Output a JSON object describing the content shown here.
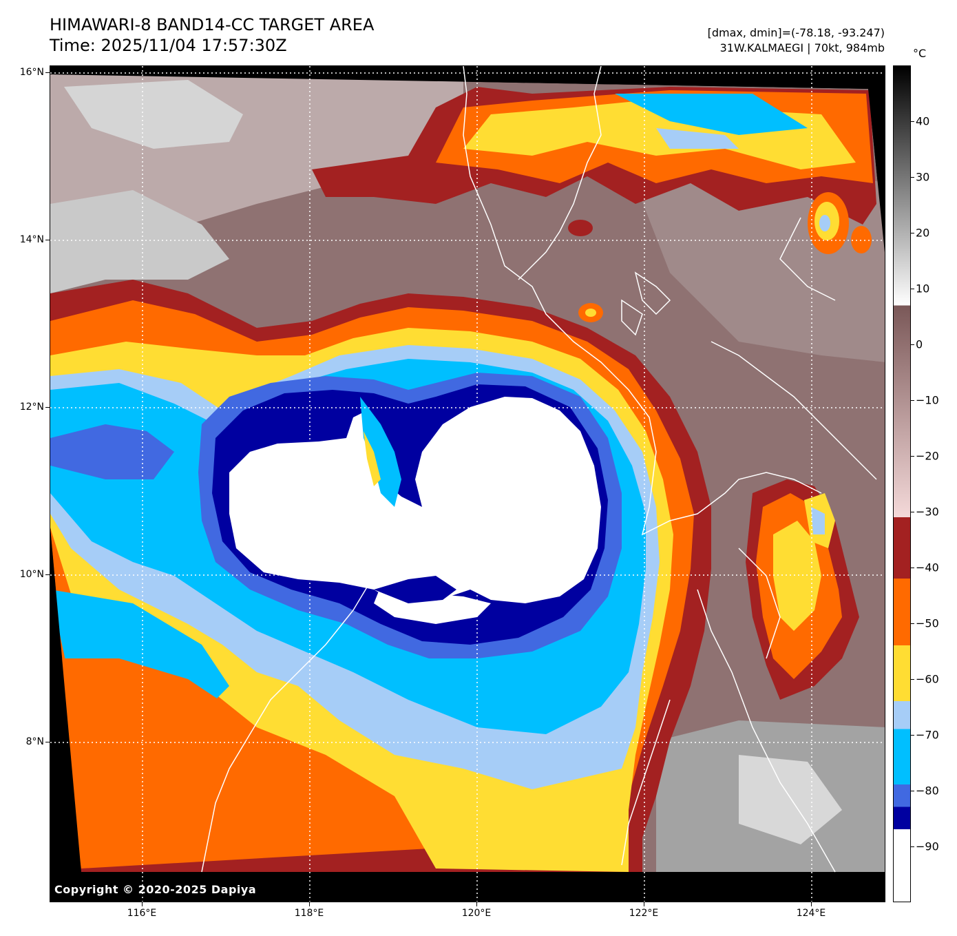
{
  "title_line1": "HIMAWARI-8 BAND14-CC TARGET AREA",
  "title_line2": "Time: 2025/11/04 17:57:30Z",
  "info_line1": "[dmax, dmin]=(-78.18, -93.247)",
  "info_line2": "31W.KALMAEGI | 70kt, 984mb",
  "colorbar_unit": "°C",
  "copyright": "Copyright © 2020-2025 Dapiya",
  "lat_labels": [
    "16°N",
    "14°N",
    "12°N",
    "10°N",
    "8°N"
  ],
  "lon_labels": [
    "116°E",
    "118°E",
    "120°E",
    "122°E",
    "124°E"
  ],
  "colorbar_labels": [
    "40",
    "30",
    "20",
    "10",
    "0",
    "−10",
    "−20",
    "−30",
    "−40",
    "−50",
    "−60",
    "−70",
    "−80",
    "−90"
  ],
  "colorbar_segments": [
    {
      "from": 50,
      "to": 7,
      "colors": [
        "#000000",
        "#ffffff"
      ]
    },
    {
      "from": 7,
      "to": -31,
      "colors": [
        "#7a5858",
        "#f4d9d9"
      ]
    },
    {
      "from": -31,
      "to": -42,
      "color": "#a32121"
    },
    {
      "from": -42,
      "to": -54,
      "color": "#ff6a00"
    },
    {
      "from": -54,
      "to": -64,
      "color": "#ffdd33"
    },
    {
      "from": -64,
      "to": -69,
      "color": "#a6cdf7"
    },
    {
      "from": -69,
      "to": -79,
      "color": "#00bfff"
    },
    {
      "from": -79,
      "to": -83,
      "color": "#4169e1"
    },
    {
      "from": -83,
      "to": -87,
      "color": "#0000a0"
    },
    {
      "from": -87,
      "to": -100,
      "color": "#ffffff"
    }
  ],
  "colors": {
    "land_grey": "#8a6d6d",
    "cold_cloud": "#ffffff"
  }
}
